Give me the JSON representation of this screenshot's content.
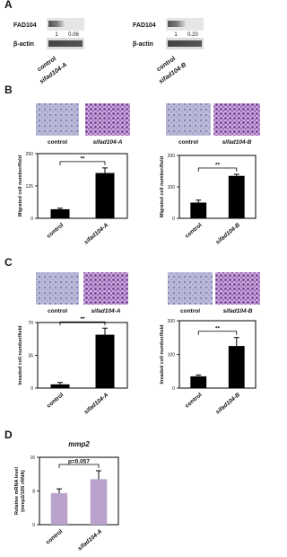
{
  "panel_labels": [
    "A",
    "B",
    "C",
    "D"
  ],
  "blots": [
    {
      "target": "FAD104",
      "control": "β-actin",
      "ratios": [
        "1",
        "0.06"
      ],
      "lanes": [
        "control",
        "sifad104-A"
      ]
    },
    {
      "target": "FAD104",
      "control": "β-actin",
      "ratios": [
        "1",
        "0.20"
      ],
      "lanes": [
        "control",
        "sifad104-B"
      ]
    }
  ],
  "micrograph_labels": [
    [
      "control",
      "sifad104-A"
    ],
    [
      "control",
      "sifad104-B"
    ],
    [
      "control",
      "sifad104-A"
    ],
    [
      "control",
      "sifad104-B"
    ]
  ],
  "chart_data": [
    {
      "type": "bar",
      "ylabel": "Migrated cell number/field",
      "categories": [
        "control",
        "sifad104-A"
      ],
      "values": [
        35,
        175
      ],
      "errors": [
        4,
        20
      ],
      "color": "#000000",
      "ylim": [
        0,
        250
      ],
      "yticks": [
        0,
        125,
        250
      ],
      "annotation": "**"
    },
    {
      "type": "bar",
      "ylabel": "Migrated cell number/field",
      "categories": [
        "control",
        "sifad104-B"
      ],
      "values": [
        50,
        135
      ],
      "errors": [
        8,
        5
      ],
      "color": "#000000",
      "ylim": [
        0,
        200
      ],
      "yticks": [
        0,
        100,
        200
      ],
      "annotation": "**"
    },
    {
      "type": "bar",
      "ylabel": "Invaded cell number/field",
      "categories": [
        "control",
        "sifad104-A"
      ],
      "values": [
        4,
        57
      ],
      "errors": [
        2,
        7
      ],
      "color": "#000000",
      "ylim": [
        0,
        70
      ],
      "yticks": [
        0,
        35,
        70
      ],
      "annotation": "**"
    },
    {
      "type": "bar",
      "ylabel": "Invaded cell number/field",
      "categories": [
        "control",
        "sifad104-B"
      ],
      "values": [
        35,
        125
      ],
      "errors": [
        4,
        25
      ],
      "color": "#000000",
      "ylim": [
        0,
        200
      ],
      "yticks": [
        0,
        100,
        200
      ],
      "annotation": "**"
    },
    {
      "type": "bar",
      "title": "mmp2",
      "ylabel": [
        "Relative mRNA level",
        "(mmp2/18S rRNA)"
      ],
      "categories": [
        "control",
        "sifad104-A"
      ],
      "values": [
        7.5,
        10.8
      ],
      "errors": [
        1,
        2
      ],
      "color": "#b9a3cc",
      "ylim": [
        0,
        16
      ],
      "yticks": [
        0,
        8,
        16
      ],
      "annotation": "p=0.057"
    }
  ]
}
